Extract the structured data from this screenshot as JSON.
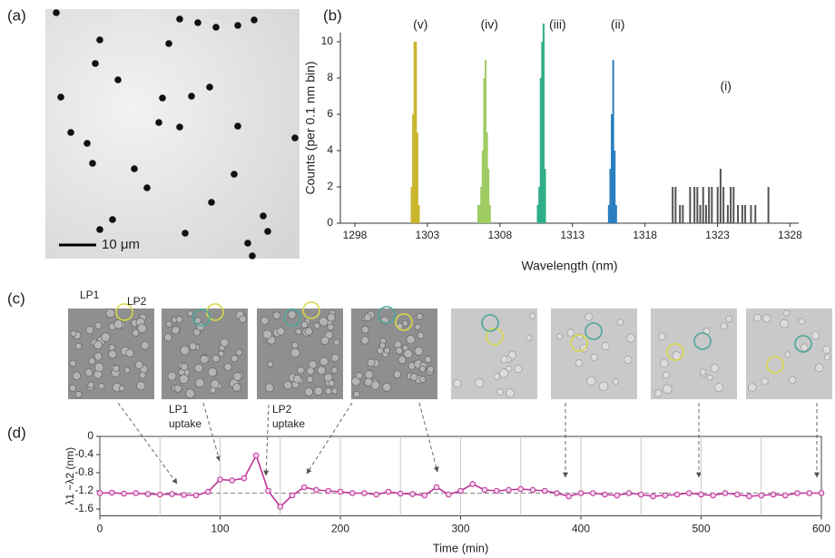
{
  "figure": {
    "panel_labels": [
      "(a)",
      "(b)",
      "(c)",
      "(d)"
    ],
    "scale_bar": "10 μm",
    "micrograph_labels": [
      "LP1",
      "LP2"
    ]
  },
  "chart_data": [
    {
      "type": "histogram",
      "xlabel": "Wavelength (nm)",
      "ylabel": "Counts (per 0.1 nm bin)",
      "bin_width": 0.1,
      "xlim": [
        1297,
        1328.6
      ],
      "ylim": [
        0,
        11.5
      ],
      "xticks": [
        1298,
        1303,
        1308,
        1313,
        1318,
        1323,
        1328
      ],
      "yticks": [
        0,
        2,
        4,
        6,
        8,
        10
      ],
      "series": [
        {
          "label": "(v)",
          "color": "#c9b62e",
          "x": [
            1301.9,
            1302.0,
            1302.1,
            1302.2,
            1302.3,
            1302.4
          ],
          "values": [
            2,
            6,
            10,
            10,
            5,
            1
          ]
        },
        {
          "label": "(iv)",
          "color": "#9fcc62",
          "x": [
            1306.5,
            1306.6,
            1306.7,
            1306.8,
            1306.9,
            1307.0,
            1307.1,
            1307.2,
            1307.3
          ],
          "values": [
            1,
            1,
            2,
            4,
            8,
            9,
            5,
            3,
            1
          ]
        },
        {
          "label": "(iii)",
          "color": "#2fae88",
          "x": [
            1310.6,
            1310.7,
            1310.8,
            1310.9,
            1311.0,
            1311.1
          ],
          "values": [
            1,
            2,
            8,
            10,
            11,
            3
          ]
        },
        {
          "label": "(ii)",
          "color": "#2a7fc0",
          "x": [
            1315.5,
            1315.6,
            1315.7,
            1315.8,
            1315.9,
            1316.0
          ],
          "values": [
            1,
            3,
            6,
            9,
            4,
            1
          ]
        },
        {
          "label": "(i)",
          "color": "#555555",
          "x": [
            1319.9,
            1320.1,
            1320.4,
            1320.6,
            1321.1,
            1321.4,
            1321.6,
            1321.8,
            1322.0,
            1322.2,
            1322.4,
            1322.6,
            1323.0,
            1323.2,
            1323.4,
            1323.7,
            1323.9,
            1324.1,
            1324.4,
            1324.7,
            1324.9,
            1325.3,
            1325.6,
            1326.5
          ],
          "values": [
            2,
            2,
            1,
            1,
            2,
            2,
            2,
            1,
            2,
            1,
            2,
            2,
            2,
            3,
            2,
            1,
            2,
            2,
            1,
            1,
            1,
            1,
            1,
            2
          ]
        }
      ]
    },
    {
      "type": "line",
      "xlabel": "Time (min)",
      "ylabel": "λ1 −λ2 (nm)",
      "color": "#c0339a",
      "xlim": [
        0,
        600
      ],
      "ylim": [
        -1.75,
        0
      ],
      "xticks": [
        0,
        100,
        200,
        300,
        400,
        500,
        600
      ],
      "yticks": [
        0,
        -0.4,
        -0.8,
        -1.2,
        -1.6
      ],
      "xgrid": [
        50,
        100,
        150,
        200,
        250,
        300,
        350,
        400,
        450,
        500,
        550
      ],
      "ref_line": -1.25,
      "annotations": [
        {
          "lines": [
            "LP1",
            "uptake"
          ]
        },
        {
          "lines": [
            "LP2",
            "uptake"
          ]
        }
      ],
      "x": [
        0,
        10,
        20,
        30,
        40,
        50,
        60,
        70,
        80,
        90,
        100,
        110,
        120,
        130,
        140,
        150,
        160,
        170,
        180,
        190,
        200,
        210,
        220,
        230,
        240,
        250,
        260,
        270,
        280,
        290,
        300,
        310,
        320,
        330,
        340,
        350,
        360,
        370,
        380,
        390,
        400,
        410,
        420,
        430,
        440,
        450,
        460,
        470,
        480,
        490,
        500,
        510,
        520,
        530,
        540,
        550,
        560,
        570,
        580,
        590,
        600
      ],
      "values": [
        -1.25,
        -1.24,
        -1.26,
        -1.25,
        -1.27,
        -1.28,
        -1.27,
        -1.29,
        -1.3,
        -1.22,
        -0.95,
        -0.97,
        -0.92,
        -0.42,
        -1.2,
        -1.55,
        -1.3,
        -1.12,
        -1.18,
        -1.2,
        -1.22,
        -1.25,
        -1.25,
        -1.28,
        -1.22,
        -1.26,
        -1.27,
        -1.3,
        -1.12,
        -1.28,
        -1.2,
        -1.05,
        -1.18,
        -1.2,
        -1.18,
        -1.16,
        -1.18,
        -1.2,
        -1.25,
        -1.32,
        -1.25,
        -1.25,
        -1.28,
        -1.3,
        -1.25,
        -1.28,
        -1.32,
        -1.3,
        -1.28,
        -1.25,
        -1.28,
        -1.3,
        -1.25,
        -1.28,
        -1.32,
        -1.3,
        -1.28,
        -1.3,
        -1.25,
        -1.25,
        -1.25
      ]
    }
  ]
}
